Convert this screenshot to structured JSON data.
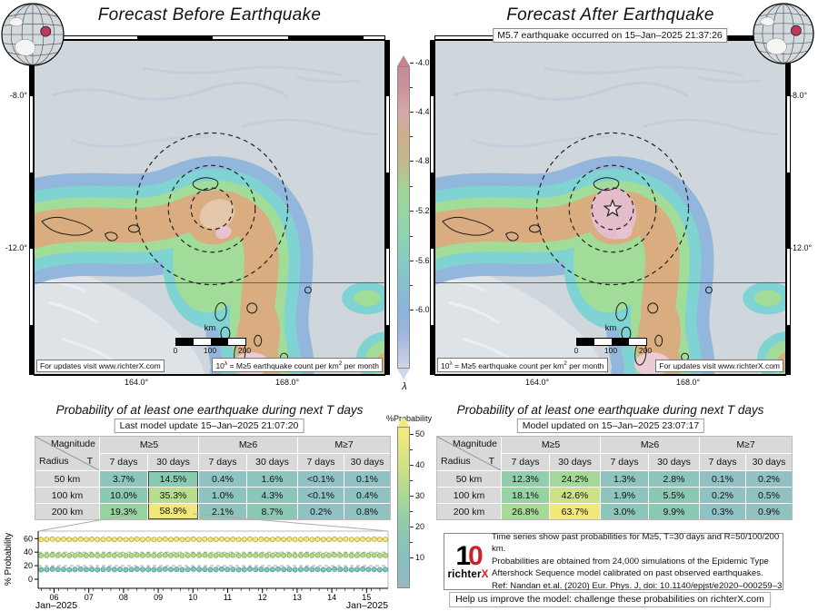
{
  "left": {
    "title": "Forecast Before Earthquake"
  },
  "right": {
    "title": "Forecast After Earthquake",
    "banner": "M5.7 earthquake occurred on 15–Jan–2025 21:37:26"
  },
  "map_common": {
    "updates_label": "For updates visit www.richterX.com",
    "legend": {
      "p1": "10",
      "sup1": "λ",
      "p2": " = M≥5 earthquake count per km",
      "sup2": "2",
      "p3": " per month"
    },
    "scalebar": {
      "unit": "km",
      "ticks": [
        "0",
        "100",
        "200"
      ]
    },
    "lat_ticks": [
      "-8.0°",
      "-12.0°"
    ],
    "lon_ticks": [
      "164.0°",
      "168.0°"
    ]
  },
  "palette": {
    "ocean": "#cfd7dc",
    "pale": "#dde3e7",
    "blue": "#93b6dc",
    "cyan": "#7fd3d2",
    "green": "#a2dc99",
    "tan": "#d9ad80",
    "tan_light": "#e5c7ab",
    "pink": "#e7c3cf",
    "coast": "#1c1c1c",
    "accent_red": "#c0395f",
    "logo_red": "#cc2229"
  },
  "lambda_bar": {
    "label": "λ",
    "ticks": [
      "-4.0",
      "-4.4",
      "-4.8",
      "-5.2",
      "-5.6",
      "-6.0"
    ]
  },
  "prob_bar": {
    "label": "%Probability",
    "ticks": [
      "50",
      "40",
      "30",
      "20",
      "10"
    ]
  },
  "tables": {
    "title": "Probability of at least one earthquake during next T days",
    "header": {
      "corner_top": "Magnitude",
      "corner_left": "Radius",
      "corner_right": "T",
      "mags": [
        "M≥5",
        "M≥6",
        "M≥7"
      ],
      "periods": [
        "7 days",
        "30 days"
      ]
    },
    "before": {
      "update": "Last model update 15–Jan–2025 21:07:20",
      "rows": [
        {
          "radius": "50 km",
          "cells": [
            {
              "t": "3.7%",
              "c": "#8cc5ba"
            },
            {
              "t": "14.5%",
              "c": "#89cbb0"
            },
            {
              "t": "0.4%",
              "c": "#8fc2c2"
            },
            {
              "t": "1.6%",
              "c": "#8dc4bd"
            },
            {
              "t": "<0.1%",
              "c": "#90c1c4"
            },
            {
              "t": "0.1%",
              "c": "#90c1c4"
            }
          ]
        },
        {
          "radius": "100 km",
          "cells": [
            {
              "t": "10.0%",
              "c": "#8bc9b2"
            },
            {
              "t": "35.3%",
              "c": "#b7dd8e"
            },
            {
              "t": "1.0%",
              "c": "#8ec3c0"
            },
            {
              "t": "4.3%",
              "c": "#8cc6b9"
            },
            {
              "t": "<0.1%",
              "c": "#90c1c4"
            },
            {
              "t": "0.4%",
              "c": "#8fc2c2"
            }
          ]
        },
        {
          "radius": "200 km",
          "cells": [
            {
              "t": "19.3%",
              "c": "#97d3a0"
            },
            {
              "t": "58.9%",
              "c": "#f0e87b"
            },
            {
              "t": "2.1%",
              "c": "#8dc4bc"
            },
            {
              "t": "8.7%",
              "c": "#8bc8b3"
            },
            {
              "t": "0.2%",
              "c": "#90c1c3"
            },
            {
              "t": "0.8%",
              "c": "#8fc2c1"
            }
          ]
        }
      ],
      "highlight_col": true
    },
    "after": {
      "update": "Model updated on 15–Jan–2025 23:07:17",
      "rows": [
        {
          "radius": "50 km",
          "cells": [
            {
              "t": "12.3%",
              "c": "#90cead"
            },
            {
              "t": "24.2%",
              "c": "#a3d898"
            },
            {
              "t": "1.3%",
              "c": "#8ec3bf"
            },
            {
              "t": "2.8%",
              "c": "#8dc5bb"
            },
            {
              "t": "0.1%",
              "c": "#90c1c4"
            },
            {
              "t": "0.2%",
              "c": "#90c1c3"
            }
          ]
        },
        {
          "radius": "100 km",
          "cells": [
            {
              "t": "18.1%",
              "c": "#96d2a2"
            },
            {
              "t": "42.6%",
              "c": "#cde287"
            },
            {
              "t": "1.9%",
              "c": "#8dc4bd"
            },
            {
              "t": "5.5%",
              "c": "#8cc7b6"
            },
            {
              "t": "0.2%",
              "c": "#90c1c3"
            },
            {
              "t": "0.5%",
              "c": "#8fc2c2"
            }
          ]
        },
        {
          "radius": "200 km",
          "cells": [
            {
              "t": "26.8%",
              "c": "#a7da94"
            },
            {
              "t": "63.7%",
              "c": "#f2e879"
            },
            {
              "t": "3.0%",
              "c": "#8dc5ba"
            },
            {
              "t": "9.9%",
              "c": "#8ac9b1"
            },
            {
              "t": "0.3%",
              "c": "#8fc2c3"
            },
            {
              "t": "0.9%",
              "c": "#8fc2c1"
            }
          ]
        }
      ],
      "highlight_col": false
    }
  },
  "chart": {
    "ylabel": "% Probability",
    "yticks": [
      60,
      40,
      20,
      0
    ],
    "xticks": [
      "06",
      "07",
      "08",
      "09",
      "10",
      "11",
      "12",
      "13",
      "14",
      "15"
    ],
    "xlabel_left": "Jan–2025",
    "xlabel_right": "Jan–2025",
    "series": [
      {
        "name": "R=200 km",
        "value": 58.9,
        "fill": "#f2e87c",
        "edge": "#b8a83e"
      },
      {
        "name": "R=100 km",
        "value": 35.3,
        "fill": "#b6dd8e",
        "edge": "#7fae52"
      },
      {
        "name": "R=50 km",
        "value": 14.5,
        "fill": "#85c6ba",
        "edge": "#4f9a8f"
      }
    ]
  },
  "info": {
    "lines": [
      "Time series show past probabilities for M≥5, T=30 days and R=50/100/200 km.",
      "Probabilities are obtained from 24,000 simulations of the Epidemic Type",
      "Aftershock Sequence model calibrated on past observed earthquakes.",
      "Ref: Nandan et.al. (2020) Eur. Phys. J, doi: 10.1140/epjst/e2020–000259–3"
    ],
    "logo": {
      "big_black": "1",
      "big_red": "0",
      "brand_black": "richter",
      "brand_red": "X"
    }
  },
  "footer": "Help us improve the model: challenge these probabilities on richterX.com",
  "chart_data": [
    {
      "type": "table",
      "title": "Probability of at least one earthquake during next T days — Forecast Before Earthquake",
      "subtitle": "Last model update 15–Jan–2025 21:07:20",
      "columns": [
        "Radius",
        "M≥5 7 days",
        "M≥5 30 days",
        "M≥6 7 days",
        "M≥6 30 days",
        "M≥7 7 days",
        "M≥7 30 days"
      ],
      "rows": [
        [
          "50 km",
          "3.7%",
          "14.5%",
          "0.4%",
          "1.6%",
          "<0.1%",
          "0.1%"
        ],
        [
          "100 km",
          "10.0%",
          "35.3%",
          "1.0%",
          "4.3%",
          "<0.1%",
          "0.4%"
        ],
        [
          "200 km",
          "19.3%",
          "58.9%",
          "2.1%",
          "8.7%",
          "0.2%",
          "0.8%"
        ]
      ]
    },
    {
      "type": "table",
      "title": "Probability of at least one earthquake during next T days — Forecast After Earthquake",
      "subtitle": "Model updated on 15–Jan–2025 23:07:17",
      "columns": [
        "Radius",
        "M≥5 7 days",
        "M≥5 30 days",
        "M≥6 7 days",
        "M≥6 30 days",
        "M≥7 7 days",
        "M≥7 30 days"
      ],
      "rows": [
        [
          "50 km",
          "12.3%",
          "24.2%",
          "1.3%",
          "2.8%",
          "0.1%",
          "0.2%"
        ],
        [
          "100 km",
          "18.1%",
          "42.6%",
          "1.9%",
          "5.5%",
          "0.2%",
          "0.5%"
        ],
        [
          "200 km",
          "26.8%",
          "63.7%",
          "3.0%",
          "9.9%",
          "0.3%",
          "0.9%"
        ]
      ]
    },
    {
      "type": "scatter",
      "title": "Past probabilities for M≥5, T=30 days",
      "xlabel": "Jan–2025 (days 06–15)",
      "ylabel": "% Probability",
      "xticks": [
        "06",
        "07",
        "08",
        "09",
        "10",
        "11",
        "12",
        "13",
        "14",
        "15"
      ],
      "ylim": [
        0,
        68
      ],
      "gridlines": [
        20,
        40,
        60
      ],
      "series": [
        {
          "name": "R=200 km, ~constant",
          "y": 58.9
        },
        {
          "name": "R=100 km, ~constant",
          "y": 35.3
        },
        {
          "name": "R=50 km, ~constant",
          "y": 14.5
        }
      ]
    },
    {
      "type": "heatmap",
      "title": "λ colour scale (maps)",
      "label": "10^λ = M≥5 earthquake count per km² per month",
      "ticks": [
        -4.0,
        -4.4,
        -4.8,
        -5.2,
        -5.6,
        -6.0
      ]
    },
    {
      "type": "heatmap",
      "title": "%Probability colour scale (tables)",
      "ticks": [
        10,
        20,
        30,
        40,
        50
      ]
    }
  ]
}
